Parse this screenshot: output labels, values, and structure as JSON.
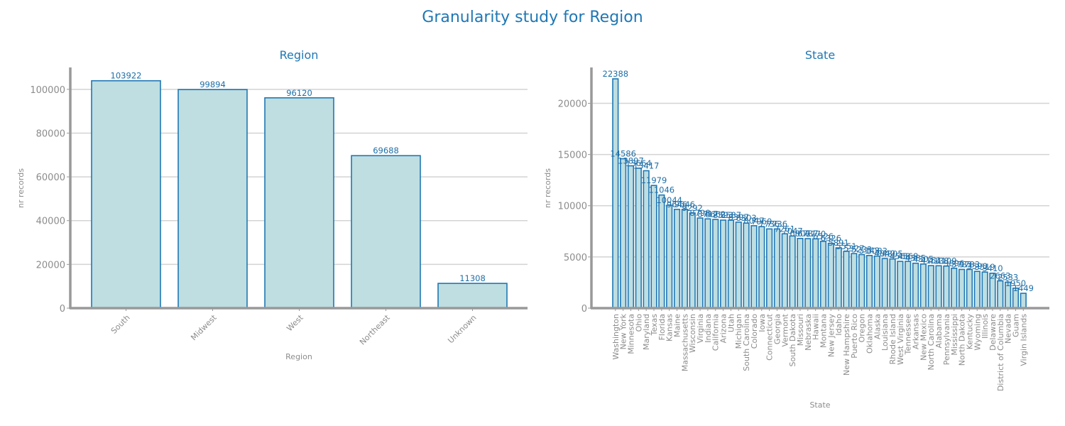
{
  "title": "Granularity study for Region",
  "chart_data": [
    {
      "type": "bar",
      "title": "Region",
      "xlabel": "Region",
      "ylabel": "nr records",
      "ylim": [
        0,
        110000
      ],
      "yticks": [
        0,
        20000,
        40000,
        60000,
        80000,
        100000
      ],
      "grid": true,
      "categories": [
        "South",
        "Midwest",
        "West",
        "Northeast",
        "Unknown"
      ],
      "values": [
        103922,
        99894,
        96120,
        69688,
        11308
      ]
    },
    {
      "type": "bar",
      "title": "State",
      "xlabel": "State",
      "ylabel": "nr records",
      "ylim": [
        0,
        23500
      ],
      "yticks": [
        0,
        5000,
        10000,
        15000,
        20000
      ],
      "grid": true,
      "categories": [
        "Washington",
        "New York",
        "Minnesota",
        "Ohio",
        "Maryland",
        "Texas",
        "Florida",
        "Kansas",
        "Maine",
        "Massachusetts",
        "Wisconsin",
        "Virginia",
        "Indiana",
        "California",
        "Arizona",
        "Utah",
        "Michigan",
        "South Carolina",
        "Colorado",
        "Iowa",
        "Connecticut",
        "Georgia",
        "Vermont",
        "South Dakota",
        "Missouri",
        "Nebraska",
        "Hawaii",
        "Montana",
        "New Jersey",
        "Idaho",
        "New Hampshire",
        "Puerto Rico",
        "Oregon",
        "Oklahoma",
        "Alaska",
        "Louisiana",
        "Rhode Island",
        "West Virginia",
        "Tennessee",
        "Arkansas",
        "New Mexico",
        "North Carolina",
        "Alabama",
        "Pennsylvania",
        "Mississippi",
        "North Dakota",
        "Kentucky",
        "Wyoming",
        "Illinois",
        "Delaware",
        "District of Columbia",
        "Nevada",
        "Guam",
        "Virgin Islands"
      ],
      "values": [
        22388,
        14586,
        13897,
        13664,
        13417,
        11979,
        11046,
        10044,
        9646,
        9646,
        9292,
        8798,
        8717,
        8662,
        8593,
        8587,
        8397,
        8303,
        8047,
        7960,
        7736,
        7736,
        7261,
        7047,
        6807,
        6787,
        6770,
        6526,
        6326,
        5891,
        5551,
        5327,
        5233,
        5143,
        5083,
        4840,
        4805,
        4568,
        4568,
        4385,
        4305,
        4151,
        4138,
        4109,
        3896,
        3783,
        3783,
        3590,
        3519,
        3410,
        2663,
        2533,
        1950,
        1449
      ]
    }
  ]
}
